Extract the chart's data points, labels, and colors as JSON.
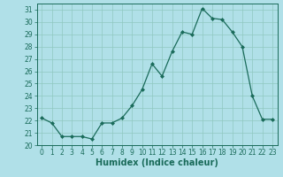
{
  "x": [
    0,
    1,
    2,
    3,
    4,
    5,
    6,
    7,
    8,
    9,
    10,
    11,
    12,
    13,
    14,
    15,
    16,
    17,
    18,
    19,
    20,
    21,
    22,
    23
  ],
  "y": [
    22.2,
    21.8,
    20.7,
    20.7,
    20.7,
    20.5,
    21.8,
    21.8,
    22.2,
    23.2,
    24.5,
    26.6,
    25.6,
    27.6,
    29.2,
    29.0,
    31.1,
    30.3,
    30.2,
    29.2,
    28.0,
    24.0,
    22.1,
    22.1
  ],
  "xlabel": "Humidex (Indice chaleur)",
  "ylim": [
    20,
    31.5
  ],
  "xlim": [
    -0.5,
    23.5
  ],
  "yticks": [
    20,
    21,
    22,
    23,
    24,
    25,
    26,
    27,
    28,
    29,
    30,
    31
  ],
  "xticks": [
    0,
    1,
    2,
    3,
    4,
    5,
    6,
    7,
    8,
    9,
    10,
    11,
    12,
    13,
    14,
    15,
    16,
    17,
    18,
    19,
    20,
    21,
    22,
    23
  ],
  "line_color": "#1a6b5a",
  "marker": "D",
  "marker_size": 2.0,
  "bg_color": "#b0e0e8",
  "grid_color": "#90c8c0",
  "tick_label_fontsize": 5.5,
  "xlabel_fontsize": 7.0
}
